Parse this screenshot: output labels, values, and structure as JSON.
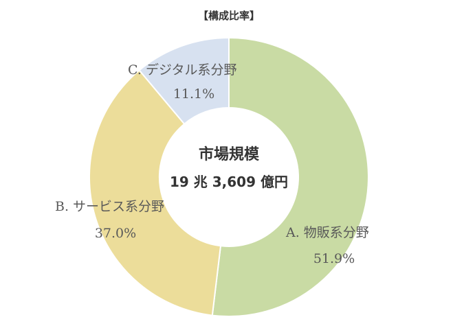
{
  "chart_data": {
    "type": "pie",
    "variant": "donut",
    "title": "【構成比率】",
    "center_label": {
      "line1": "市場規模",
      "line2": "19 兆 3,609 億円"
    },
    "categories": [
      "A.  物販系分野",
      "B.  サービス系分野",
      "C.  デジタル系分野"
    ],
    "values": [
      51.9,
      37.0,
      11.1
    ],
    "value_labels": [
      "51.9%",
      "37.0%",
      "11.1%"
    ],
    "unit": "%",
    "colors": [
      "#c9dba4",
      "#ecdd9a",
      "#d7e1f0"
    ],
    "legend": "none"
  }
}
